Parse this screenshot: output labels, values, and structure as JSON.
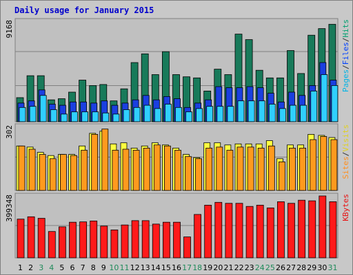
{
  "chart_data": [
    {
      "type": "bar",
      "title": "Daily usage for January 2015",
      "panel": "top",
      "max_label": "9168",
      "ylim": [
        0,
        9168
      ],
      "categories": [
        "1",
        "2",
        "3",
        "4",
        "5",
        "6",
        "7",
        "8",
        "9",
        "10",
        "11",
        "12",
        "13",
        "14",
        "15",
        "16",
        "17",
        "18",
        "19",
        "20",
        "21",
        "22",
        "23",
        "24",
        "25",
        "26",
        "27",
        "28",
        "29",
        "30",
        "31"
      ],
      "weekend_days": [
        "3",
        "4",
        "10",
        "11",
        "17",
        "18",
        "24",
        "25",
        "31"
      ],
      "right_label": [
        {
          "text": "Pages",
          "color": "#00b4e6"
        },
        {
          "text": "/",
          "color": "#303030"
        },
        {
          "text": "Files",
          "color": "#0040ff"
        },
        {
          "text": "/",
          "color": "#303030"
        },
        {
          "text": "Hits",
          "color": "#00a070"
        }
      ],
      "series": [
        {
          "name": "Hits",
          "color": "#187a5a",
          "values": [
            2200,
            4200,
            4200,
            2000,
            2100,
            2700,
            3800,
            3300,
            3400,
            1900,
            3000,
            5400,
            6200,
            4300,
            6400,
            4300,
            4100,
            4000,
            2800,
            4800,
            4300,
            8000,
            7500,
            4700,
            4000,
            4000,
            6500,
            4400,
            7900,
            8500,
            8900
          ]
        },
        {
          "name": "Files",
          "color": "#1a3fe0",
          "values": [
            1700,
            1900,
            2900,
            1600,
            1500,
            1800,
            1800,
            1700,
            1900,
            1500,
            1700,
            2000,
            2400,
            2000,
            2300,
            2100,
            1300,
            1700,
            2000,
            3200,
            3100,
            3100,
            3200,
            3100,
            2600,
            1800,
            2700,
            2400,
            3300,
            5400,
            3800
          ]
        },
        {
          "name": "Pages",
          "color": "#30cfff",
          "values": [
            1300,
            1400,
            2400,
            1100,
            700,
            900,
            900,
            900,
            800,
            700,
            1100,
            1300,
            1500,
            1200,
            1600,
            1300,
            900,
            1200,
            1400,
            1400,
            1400,
            1900,
            1900,
            1900,
            1600,
            1200,
            1500,
            1500,
            2800,
            4300,
            3300
          ]
        }
      ]
    },
    {
      "type": "bar",
      "panel": "middle",
      "max_label": "302",
      "ylim": [
        0,
        302
      ],
      "right_label": [
        {
          "text": "Sites",
          "color": "#ff9020"
        },
        {
          "text": "/",
          "color": "#303030"
        },
        {
          "text": "Visits",
          "color": "#e0d020"
        }
      ],
      "series": [
        {
          "name": "Visits",
          "color": "#ffff40",
          "values": [
            210,
            205,
            180,
            165,
            170,
            170,
            210,
            270,
            280,
            220,
            225,
            200,
            210,
            225,
            215,
            200,
            170,
            155,
            225,
            225,
            215,
            220,
            220,
            220,
            235,
            150,
            215,
            215,
            265,
            260,
            250
          ]
        },
        {
          "name": "Sites",
          "color": "#ff9a1e",
          "values": [
            210,
            195,
            170,
            150,
            170,
            165,
            190,
            265,
            290,
            190,
            195,
            190,
            200,
            215,
            210,
            190,
            160,
            150,
            200,
            205,
            190,
            205,
            205,
            200,
            210,
            135,
            200,
            200,
            240,
            255,
            240
          ]
        }
      ]
    },
    {
      "type": "bar",
      "panel": "bottom",
      "max_label": "399348",
      "ylim": [
        0,
        399348
      ],
      "right_label": [
        {
          "text": "KBytes",
          "color": "#e81010"
        }
      ],
      "series": [
        {
          "name": "KBytes",
          "color": "#ff1a1a",
          "values": [
            250000,
            265000,
            255000,
            170000,
            200000,
            230000,
            232000,
            238000,
            205000,
            180000,
            212000,
            240000,
            240000,
            218000,
            230000,
            230000,
            135000,
            280000,
            340000,
            358000,
            352000,
            352000,
            332000,
            340000,
            322000,
            362000,
            352000,
            372000,
            368000,
            399348,
            362000
          ]
        }
      ]
    }
  ]
}
